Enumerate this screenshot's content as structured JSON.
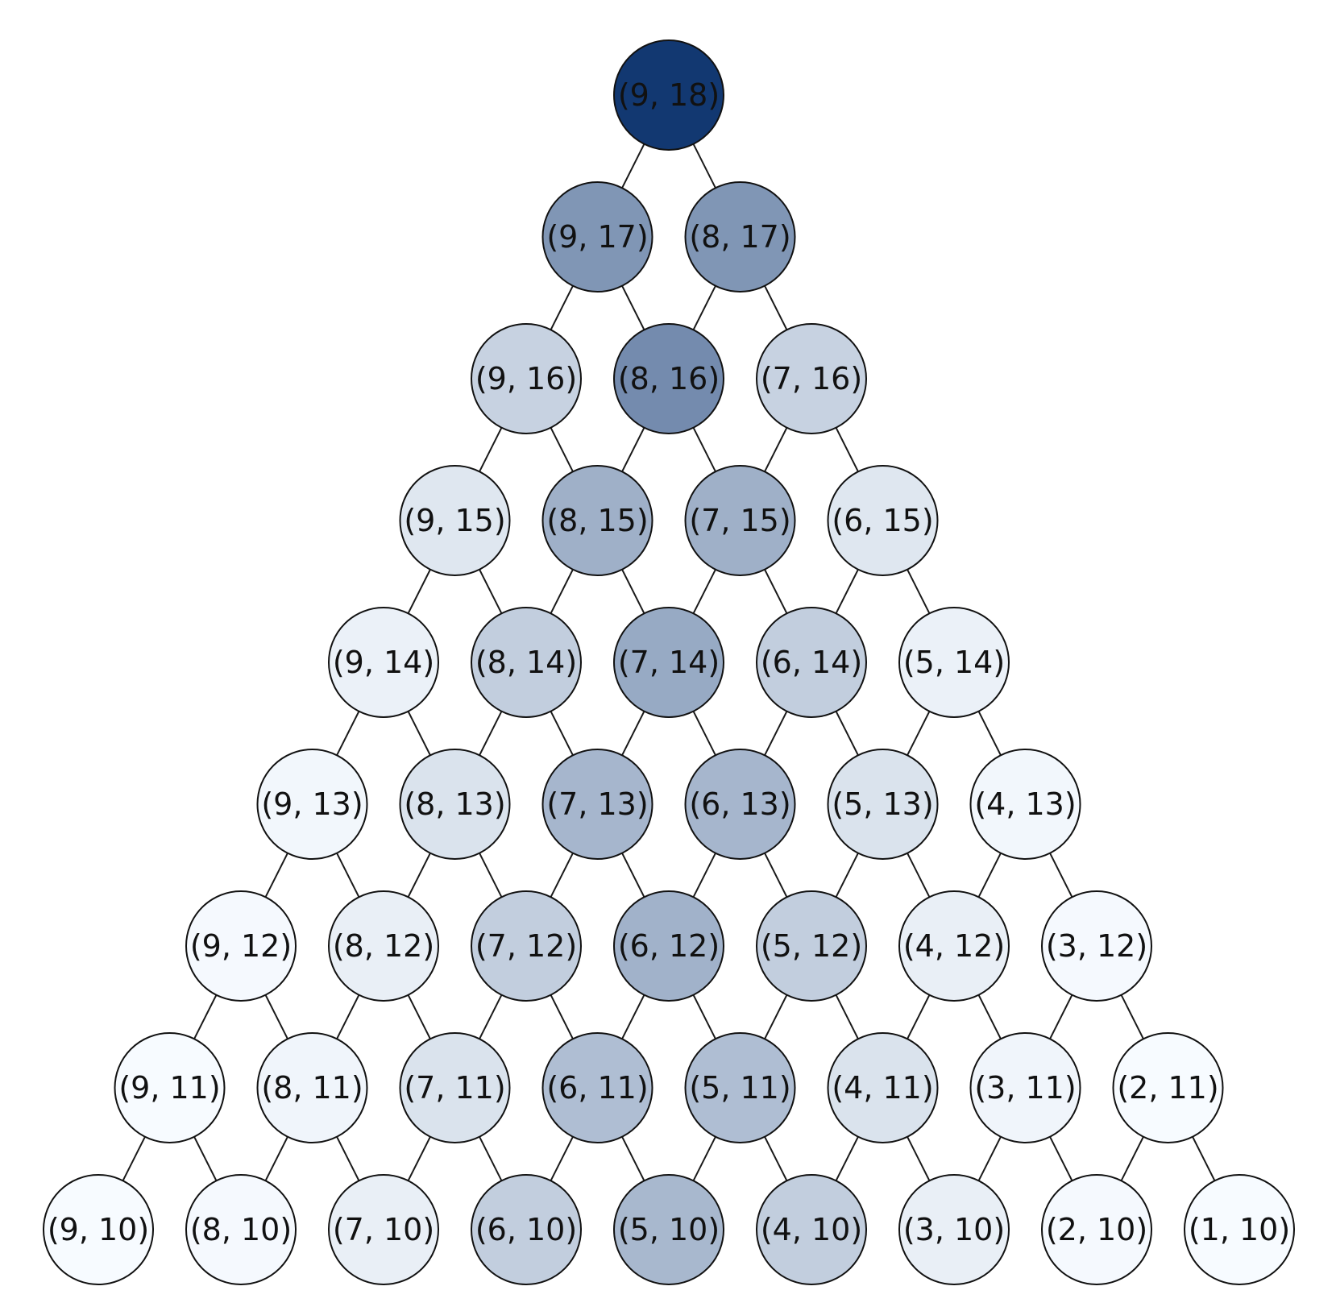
{
  "diagram": {
    "type": "lattice-tree",
    "colormap": {
      "name": "Blues",
      "low_color": "#f7fbff",
      "high_color": "#08306b"
    },
    "levels": [
      [
        {
          "label": "(9, 18)",
          "intensity": 0.96
        }
      ],
      [
        {
          "label": "(9, 17)",
          "intensity": 0.5
        },
        {
          "label": "(8, 17)",
          "intensity": 0.5
        }
      ],
      [
        {
          "label": "(9, 16)",
          "intensity": 0.2
        },
        {
          "label": "(8, 16)",
          "intensity": 0.55
        },
        {
          "label": "(7, 16)",
          "intensity": 0.2
        }
      ],
      [
        {
          "label": "(9, 15)",
          "intensity": 0.1
        },
        {
          "label": "(8, 15)",
          "intensity": 0.37
        },
        {
          "label": "(7, 15)",
          "intensity": 0.37
        },
        {
          "label": "(6, 15)",
          "intensity": 0.1
        }
      ],
      [
        {
          "label": "(9, 14)",
          "intensity": 0.05
        },
        {
          "label": "(8, 14)",
          "intensity": 0.22
        },
        {
          "label": "(7, 14)",
          "intensity": 0.4
        },
        {
          "label": "(6, 14)",
          "intensity": 0.22
        },
        {
          "label": "(5, 14)",
          "intensity": 0.05
        }
      ],
      [
        {
          "label": "(9, 13)",
          "intensity": 0.02
        },
        {
          "label": "(8, 13)",
          "intensity": 0.12
        },
        {
          "label": "(7, 13)",
          "intensity": 0.34
        },
        {
          "label": "(6, 13)",
          "intensity": 0.34
        },
        {
          "label": "(5, 13)",
          "intensity": 0.12
        },
        {
          "label": "(4, 13)",
          "intensity": 0.02
        }
      ],
      [
        {
          "label": "(9, 12)",
          "intensity": 0.01
        },
        {
          "label": "(8, 12)",
          "intensity": 0.06
        },
        {
          "label": "(7, 12)",
          "intensity": 0.22
        },
        {
          "label": "(6, 12)",
          "intensity": 0.36
        },
        {
          "label": "(5, 12)",
          "intensity": 0.22
        },
        {
          "label": "(4, 12)",
          "intensity": 0.06
        },
        {
          "label": "(3, 12)",
          "intensity": 0.01
        }
      ],
      [
        {
          "label": "(9, 11)",
          "intensity": 0.0
        },
        {
          "label": "(8, 11)",
          "intensity": 0.03
        },
        {
          "label": "(7, 11)",
          "intensity": 0.12
        },
        {
          "label": "(6, 11)",
          "intensity": 0.3
        },
        {
          "label": "(5, 11)",
          "intensity": 0.3
        },
        {
          "label": "(4, 11)",
          "intensity": 0.12
        },
        {
          "label": "(3, 11)",
          "intensity": 0.03
        },
        {
          "label": "(2, 11)",
          "intensity": 0.0
        }
      ],
      [
        {
          "label": "(9, 10)",
          "intensity": 0.0
        },
        {
          "label": "(8, 10)",
          "intensity": 0.01
        },
        {
          "label": "(7, 10)",
          "intensity": 0.06
        },
        {
          "label": "(6, 10)",
          "intensity": 0.22
        },
        {
          "label": "(5, 10)",
          "intensity": 0.33
        },
        {
          "label": "(4, 10)",
          "intensity": 0.22
        },
        {
          "label": "(3, 10)",
          "intensity": 0.06
        },
        {
          "label": "(2, 10)",
          "intensity": 0.01
        },
        {
          "label": "(1, 10)",
          "intensity": 0.0
        }
      ]
    ],
    "edges": "each node (i, j) connects to (i, j-1) and (i-1, j-1) on the next level"
  }
}
